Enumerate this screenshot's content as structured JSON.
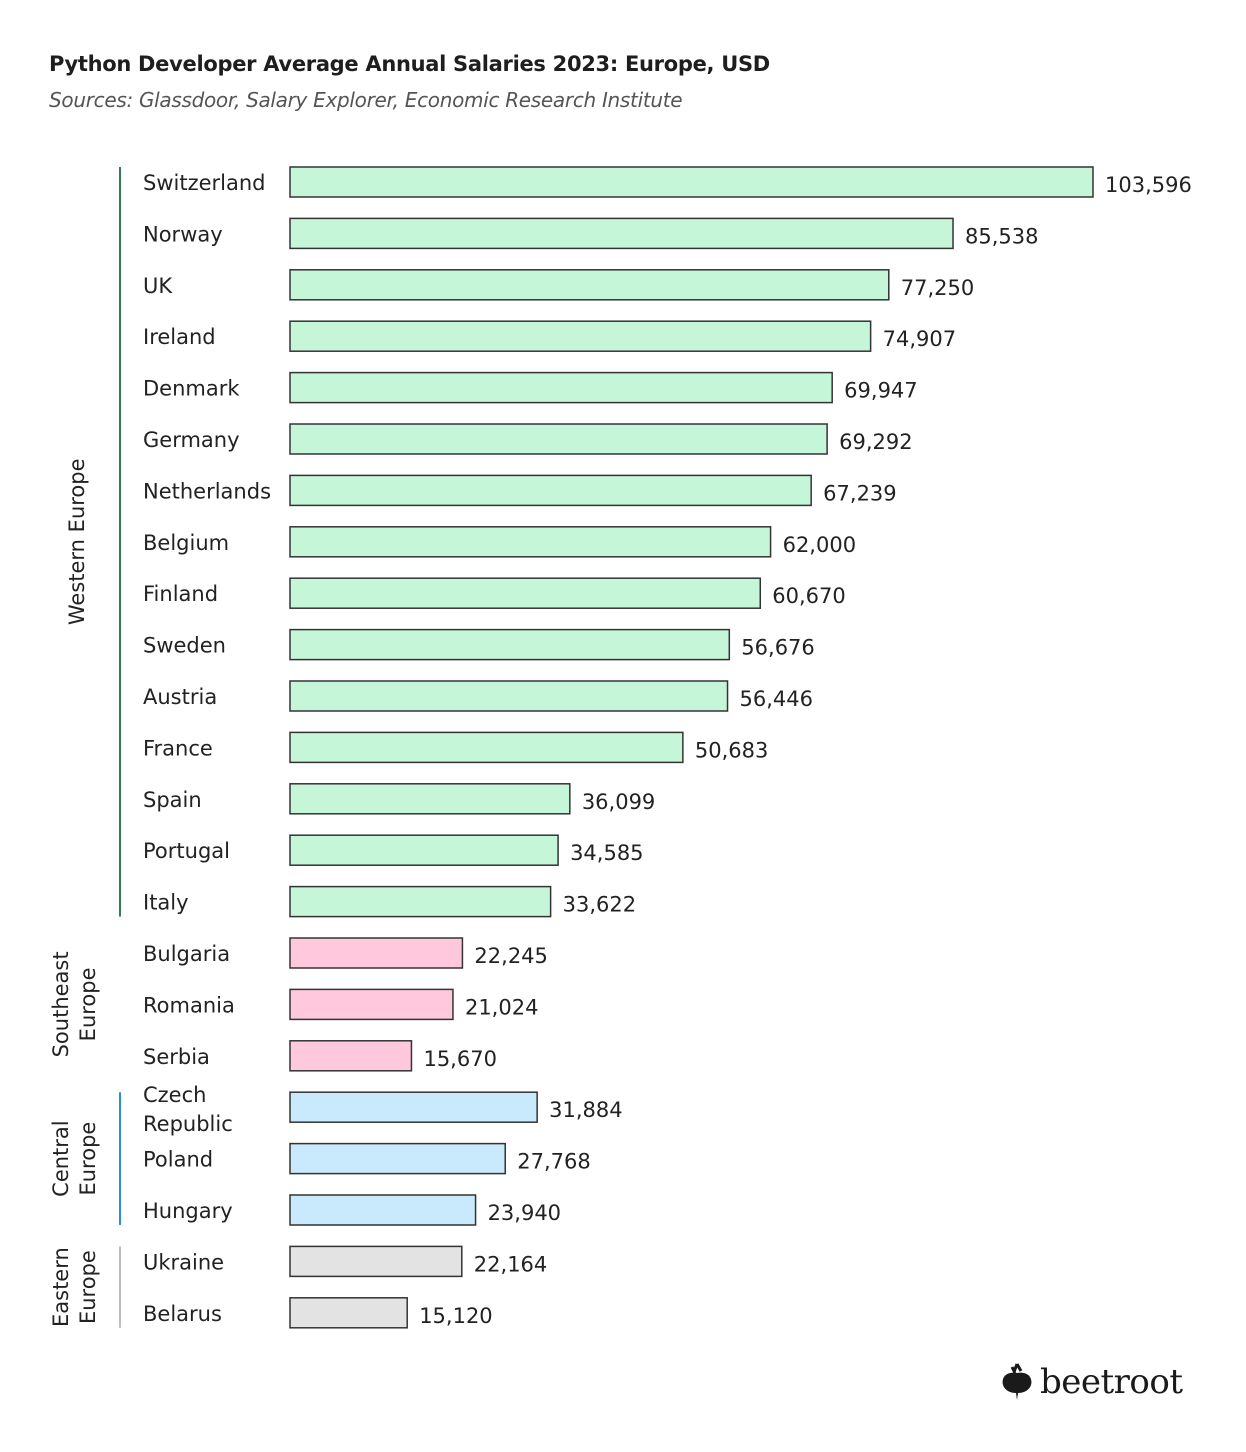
{
  "chart_data": {
    "type": "bar",
    "orientation": "horizontal",
    "title": "Python Developer Average Annual Salaries 2023: Europe, USD",
    "subtitle": "Sources: Glassdoor, Salary Explorer, Economic Research Institute",
    "xlim": [
      0,
      103596
    ],
    "grid": false,
    "groups": [
      {
        "name": "Western Europe",
        "color": "#c6f6d8",
        "line_color": "#2e7d5b",
        "categories": [
          "Switzerland",
          "Norway",
          "UK",
          "Ireland",
          "Denmark",
          "Germany",
          "Netherlands",
          "Belgium",
          "Finland",
          "Sweden",
          "Austria",
          "France",
          "Spain",
          "Portugal",
          "Italy"
        ],
        "values": [
          103596,
          85538,
          77250,
          74907,
          69947,
          69292,
          67239,
          62000,
          60670,
          56676,
          56446,
          50683,
          36099,
          34585,
          33622
        ],
        "value_labels": [
          "103,596",
          "85,538",
          "77,250",
          "74,907",
          "69,947",
          "69,292",
          "67,239",
          "62,000",
          "60,670",
          "56,676",
          "56,446",
          "50,683",
          "36,099",
          "34,585",
          "33,622"
        ]
      },
      {
        "name": "Southeast Europe",
        "color": "#ffc8dc",
        "line_color": "",
        "categories": [
          "Bulgaria",
          "Romania",
          "Serbia"
        ],
        "values": [
          22245,
          21024,
          15670
        ],
        "value_labels": [
          "22,245",
          "21,024",
          "15,670"
        ]
      },
      {
        "name": "Central Europe",
        "color": "#c9e9fc",
        "line_color": "#2a8fd6",
        "categories": [
          "Czech Republic",
          "Poland",
          "Hungary"
        ],
        "values": [
          31884,
          27768,
          23940
        ],
        "value_labels": [
          "31,884",
          "27,768",
          "23,940"
        ]
      },
      {
        "name": "Eastern Europe",
        "color": "#e3e3e3",
        "line_color": "#bdbdbd",
        "categories": [
          "Ukraine",
          "Belarus"
        ],
        "values": [
          22164,
          15120
        ],
        "value_labels": [
          "22,164",
          "15,120"
        ]
      }
    ]
  },
  "logo": {
    "text": "beetroot"
  }
}
